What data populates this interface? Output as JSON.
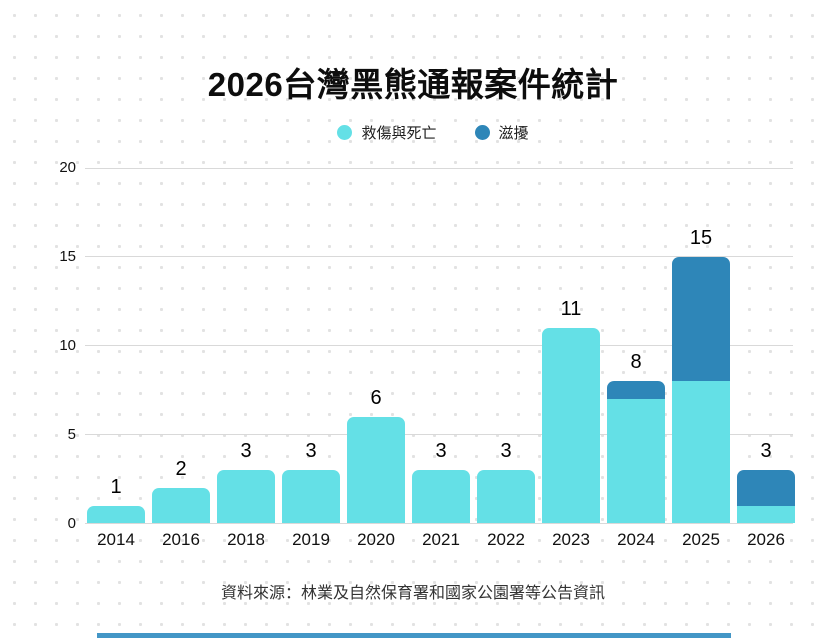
{
  "title": "2026台灣黑熊通報案件統計",
  "legend": [
    {
      "label": "救傷與死亡",
      "color": "#64e0e6"
    },
    {
      "label": "滋擾",
      "color": "#2e86b8"
    }
  ],
  "source": "資料來源：林業及自然保育署和國家公園署等公告資訊",
  "colors": {
    "cyan": "#64e0e6",
    "blue": "#2e86b8",
    "gridline": "#d9d9d9",
    "dot_pattern": "#e2e2e2",
    "accent_bar": "#4396c6",
    "text": "#111111"
  },
  "chart_data": {
    "type": "bar",
    "stacked": true,
    "title": "2026台灣黑熊通報案件統計",
    "categories": [
      "2014",
      "2016",
      "2018",
      "2019",
      "2020",
      "2021",
      "2022",
      "2023",
      "2024",
      "2025",
      "2026"
    ],
    "series": [
      {
        "name": "救傷與死亡",
        "color": "#64e0e6",
        "values": [
          1,
          2,
          3,
          3,
          6,
          3,
          3,
          11,
          7,
          8,
          1
        ]
      },
      {
        "name": "滋擾",
        "color": "#2e86b8",
        "values": [
          0,
          0,
          0,
          0,
          0,
          0,
          0,
          0,
          1,
          7,
          2
        ]
      }
    ],
    "totals": [
      1,
      2,
      3,
      3,
      6,
      3,
      3,
      11,
      8,
      15,
      3
    ],
    "xlabel": "",
    "ylabel": "",
    "yticks": [
      0,
      5,
      10,
      15,
      20
    ],
    "ylim": [
      0,
      20
    ],
    "grid": true,
    "legend_position": "top",
    "footnote": "資料來源：林業及自然保育署和國家公園署等公告資訊"
  }
}
